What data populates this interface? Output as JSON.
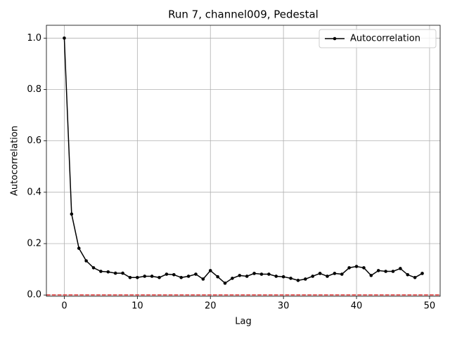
{
  "chart_data": {
    "type": "line",
    "title": "Run 7, channel009, Pedestal",
    "xlabel": "Lag",
    "ylabel": "Autocorrelation",
    "x": [
      0,
      1,
      2,
      3,
      4,
      5,
      6,
      7,
      8,
      9,
      10,
      11,
      12,
      13,
      14,
      15,
      16,
      17,
      18,
      19,
      20,
      21,
      22,
      23,
      24,
      25,
      26,
      27,
      28,
      29,
      30,
      31,
      32,
      33,
      34,
      35,
      36,
      37,
      38,
      39,
      40,
      41,
      42,
      43,
      44,
      45,
      46,
      47,
      48,
      49
    ],
    "series": [
      {
        "name": "Autocorrelation",
        "color": "#000000",
        "values": [
          1.0,
          0.315,
          0.182,
          0.133,
          0.106,
          0.092,
          0.09,
          0.085,
          0.085,
          0.068,
          0.068,
          0.073,
          0.073,
          0.068,
          0.081,
          0.079,
          0.068,
          0.073,
          0.081,
          0.062,
          0.095,
          0.071,
          0.046,
          0.065,
          0.076,
          0.073,
          0.084,
          0.081,
          0.081,
          0.073,
          0.071,
          0.065,
          0.057,
          0.062,
          0.073,
          0.084,
          0.073,
          0.084,
          0.081,
          0.106,
          0.111,
          0.106,
          0.076,
          0.095,
          0.092,
          0.092,
          0.103,
          0.079,
          0.068,
          0.084
        ]
      }
    ],
    "reference_line": {
      "value": 0,
      "color": "#d62728"
    },
    "xlim": [
      -2.45,
      51.45
    ],
    "xticks": [
      0,
      10,
      20,
      30,
      40,
      50
    ],
    "ylim": [
      -0.005,
      1.05
    ],
    "yticks": [
      {
        "value": 0,
        "label": "0.0"
      },
      0.2,
      0.4,
      0.6,
      0.8,
      {
        "value": 1,
        "label": "1.0"
      }
    ],
    "grid": true,
    "legend": "upper right"
  }
}
